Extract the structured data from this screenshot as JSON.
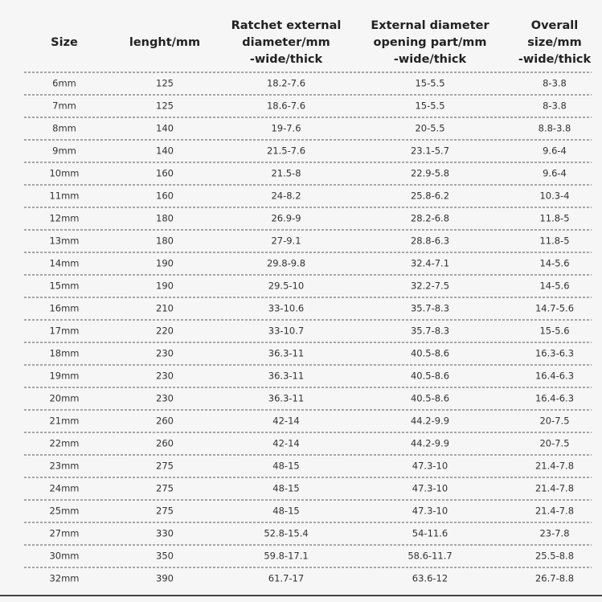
{
  "table": {
    "header": [
      [
        "Size"
      ],
      [
        "lenght/mm"
      ],
      [
        "Ratchet  external",
        "diameter/mm",
        "-wide/thick"
      ],
      [
        "External diameter",
        "opening part/mm",
        "-wide/thick"
      ],
      [
        "Overall",
        "size/mm",
        "-wide/thick"
      ]
    ],
    "rows": [
      [
        "6mm",
        125,
        "18.2-7.6",
        "15-5.5",
        "8-3.8"
      ],
      [
        "7mm",
        125,
        "18.6-7.6",
        "15-5.5",
        "8-3.8"
      ],
      [
        "8mm",
        140,
        "19-7.6",
        "20-5.5",
        "8.8-3.8"
      ],
      [
        "9mm",
        140,
        "21.5-7.6",
        "23.1-5.7",
        "9.6-4"
      ],
      [
        "10mm",
        160,
        "21.5-8",
        "22.9-5.8",
        "9.6-4"
      ],
      [
        "11mm",
        160,
        "24-8.2",
        "25.8-6.2",
        "10.3-4"
      ],
      [
        "12mm",
        180,
        "26.9-9",
        "28.2-6.8",
        "11.8-5"
      ],
      [
        "13mm",
        180,
        "27-9.1",
        "28.8-6.3",
        "11.8-5"
      ],
      [
        "14mm",
        190,
        "29.8-9.8",
        "32.4-7.1",
        "14-5.6"
      ],
      [
        "15mm",
        190,
        "29.5-10",
        "32.2-7.5",
        "14-5.6"
      ],
      [
        "16mm",
        210,
        "33-10.6",
        "35.7-8.3",
        "14.7-5.6"
      ],
      [
        "17mm",
        220,
        "33-10.7",
        "35.7-8.3",
        "15-5.6"
      ],
      [
        "18mm",
        230,
        "36.3-11",
        "40.5-8.6",
        "16.3-6.3"
      ],
      [
        "19mm",
        230,
        "36.3-11",
        "40.5-8.6",
        "16.4-6.3"
      ],
      [
        "20mm",
        230,
        "36.3-11",
        "40.5-8.6",
        "16.4-6.3"
      ],
      [
        "21mm",
        260,
        "42-14",
        "44.2-9.9",
        "20-7.5"
      ],
      [
        "22mm",
        260,
        "42-14",
        "44.2-9.9",
        "20-7.5"
      ],
      [
        "23mm",
        275,
        "48-15",
        "47.3-10",
        "21.4-7.8"
      ],
      [
        "24mm",
        275,
        "48-15",
        "47.3-10",
        "21.4-7.8"
      ],
      [
        "25mm",
        275,
        "48-15",
        "47.3-10",
        "21.4-7.8"
      ],
      [
        "27mm",
        330,
        "52.8-15.4",
        "54-11.6",
        "23-7.8"
      ],
      [
        "30mm",
        350,
        "59.8-17.1",
        "58.6-11.7",
        "25.5-8.8"
      ],
      [
        "32mm",
        390,
        "61.7-17",
        "63.6-12",
        "26.7-8.8"
      ]
    ]
  }
}
